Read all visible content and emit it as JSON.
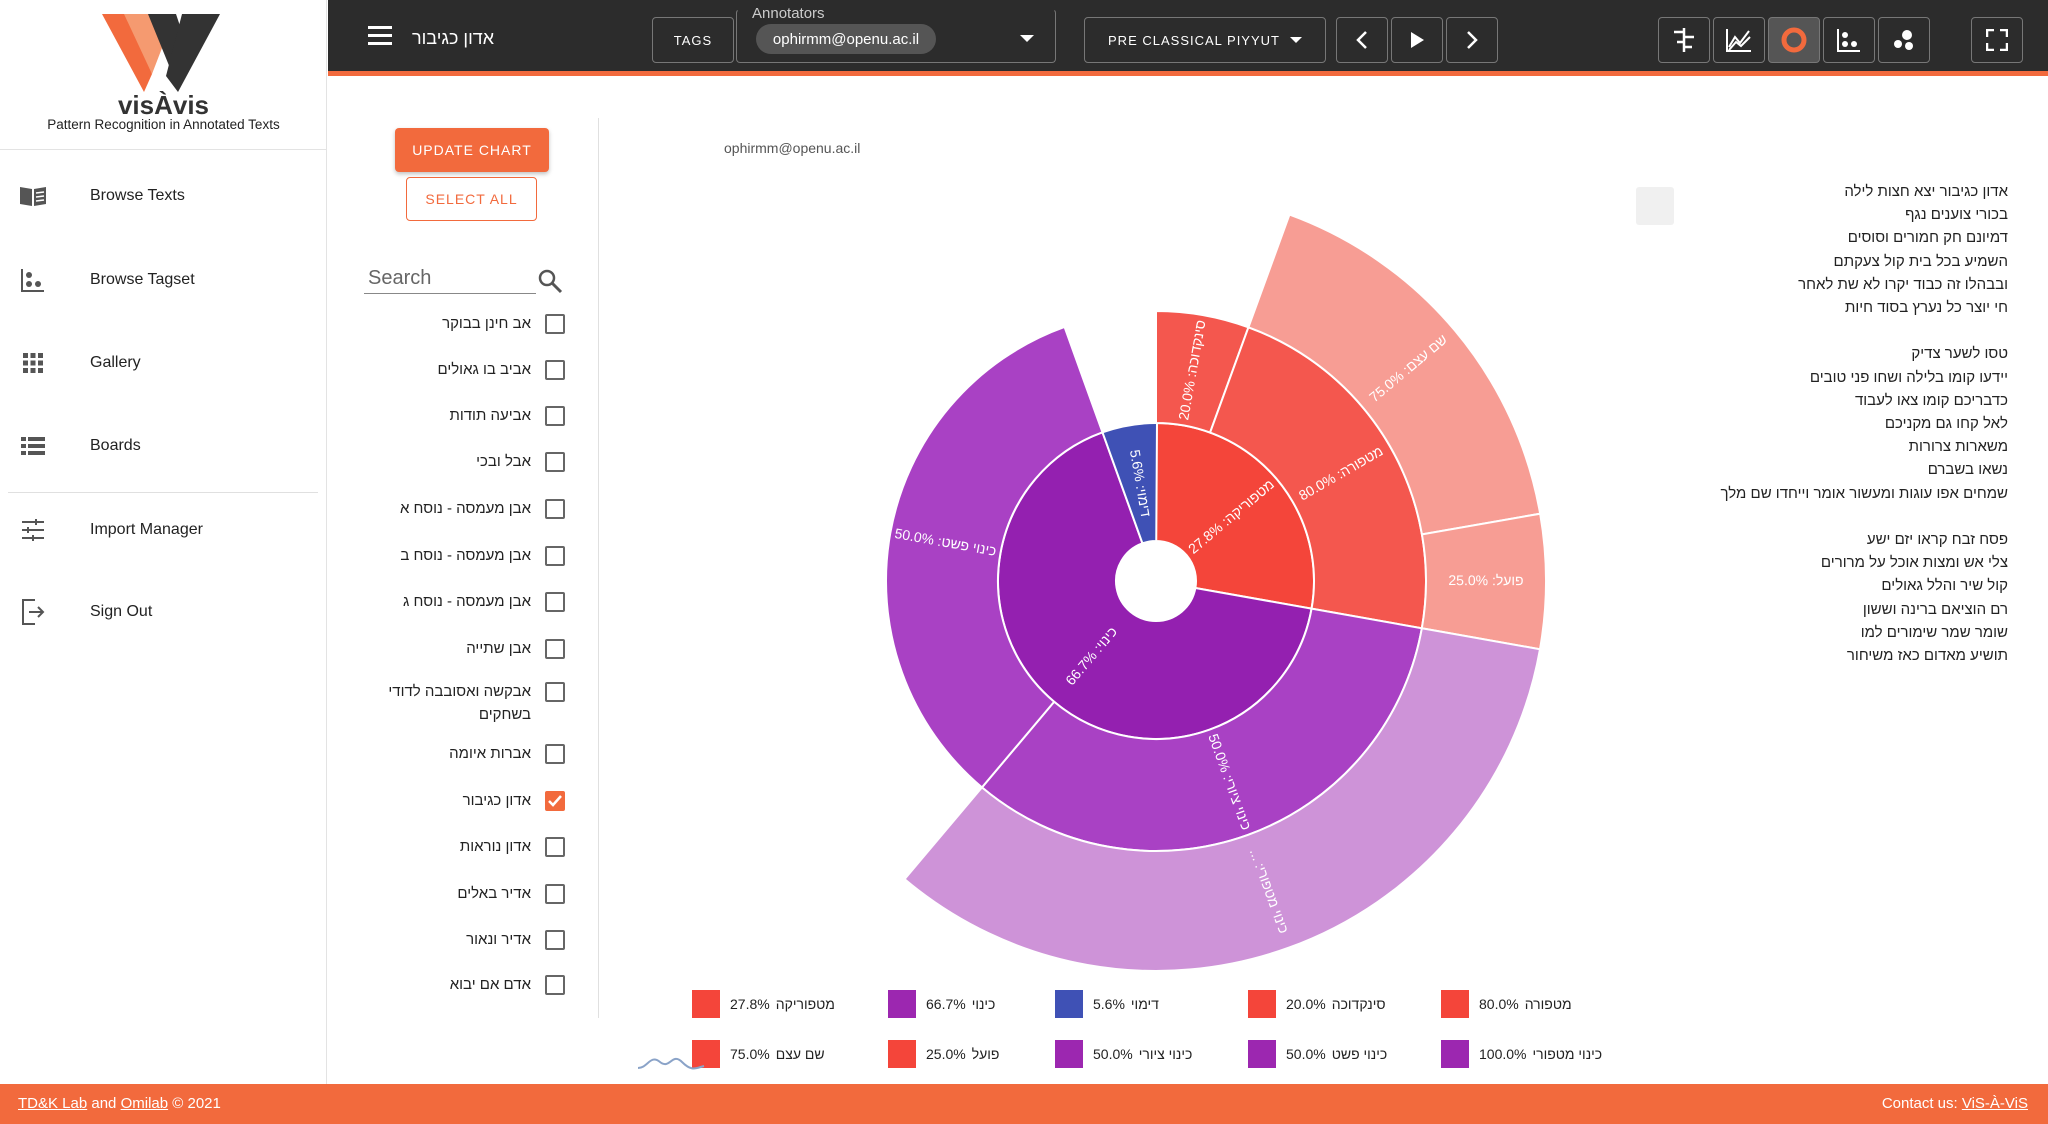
{
  "brand": {
    "name": "visÀvis",
    "tagline": "Pattern Recognition in Annotated Texts"
  },
  "nav": [
    {
      "label": "Browse Texts",
      "icon": "book-icon"
    },
    {
      "label": "Browse Tagset",
      "icon": "tagset-icon"
    },
    {
      "label": "Gallery",
      "icon": "grid-icon"
    },
    {
      "label": "Boards",
      "icon": "list-icon"
    },
    {
      "label": "Import Manager",
      "icon": "sliders-icon"
    },
    {
      "label": "Sign Out",
      "icon": "sign-out-icon"
    }
  ],
  "topbar": {
    "title": "אדון כגיבור",
    "tags_label": "TAGS",
    "annotators_label": "Annotators",
    "annotator": "ophirmm@openu.ac.il",
    "period": "PRE CLASSICAL PIYYUT"
  },
  "filters": {
    "update_label": "UPDATE CHART",
    "select_all_label": "SELECT ALL",
    "search_placeholder": "Search",
    "items": [
      {
        "label": "אב חינן בבוקר",
        "checked": false
      },
      {
        "label": "אביב בו גאולים",
        "checked": false
      },
      {
        "label": "אביעה תודות",
        "checked": false
      },
      {
        "label": "אבל ובכי",
        "checked": false
      },
      {
        "label": "אבן מעמסה - נוסח א",
        "checked": false
      },
      {
        "label": "אבן מעמסה - נוסח ב",
        "checked": false
      },
      {
        "label": "אבן מעמסה - נוסח ג",
        "checked": false
      },
      {
        "label": "אבן שתייה",
        "checked": false
      },
      {
        "label": "אבקשה ואסובבה לדודי בשחקים",
        "checked": false
      },
      {
        "label": "אברות איומה",
        "checked": false
      },
      {
        "label": "אדון כגיבור",
        "checked": true
      },
      {
        "label": "אדון נוראות",
        "checked": false
      },
      {
        "label": "אדיר באלים",
        "checked": false
      },
      {
        "label": "אדיר ונאור",
        "checked": false
      },
      {
        "label": "אדם אם יבוא",
        "checked": false
      }
    ]
  },
  "chart_user": "ophirmm@openu.ac.il",
  "chart_data": {
    "type": "sunburst",
    "rings": [
      [
        {
          "name": "מטפוריקה",
          "percent": 27.8,
          "color": "#f4453a",
          "label": "מטפוריקה: 27.8%"
        },
        {
          "name": "כינוי",
          "percent": 66.7,
          "color": "#9420b0",
          "label": "כינוי: 66.7%"
        },
        {
          "name": "דימוי",
          "percent": 5.6,
          "color": "#3f51b5",
          "label": "דימוי: 5.6%"
        }
      ],
      [
        {
          "name": "סינקדוכה",
          "percent": 20.0,
          "parent": "מטפוריקה",
          "color": "#f4574e",
          "label": "סינקדוכה: 20.0%"
        },
        {
          "name": "מטפורה",
          "percent": 80.0,
          "parent": "מטפוריקה",
          "color": "#f4574e",
          "label": "מטפורה: 80.0%"
        },
        {
          "name": "כינוי ציורי",
          "percent": 50.0,
          "parent": "כינוי",
          "color": "#a941c4",
          "label": "כינוי ציורי: 50.0%"
        },
        {
          "name": "כינוי פשט",
          "percent": 50.0,
          "parent": "כינוי",
          "color": "#a941c4",
          "label": "כינוי פשט: 50.0%"
        }
      ],
      [
        {
          "name": "שם עצם",
          "percent": 75.0,
          "parent": "מטפורה",
          "color": "#f79d94",
          "label": "שם עצם: 75.0%"
        },
        {
          "name": "פועל",
          "percent": 25.0,
          "parent": "מטפורה",
          "color": "#f79d94",
          "label": "פועל: 25.0%"
        },
        {
          "name": "כינוי מטפורי",
          "percent": 100.0,
          "parent": "כינוי ציורי",
          "color": "#ce93d8",
          "label": "כינוי מטפורי: ..."
        }
      ]
    ],
    "legend": [
      {
        "label": "מטפוריקה",
        "percent": "27.8%",
        "color": "#f4453a"
      },
      {
        "label": "כינוי",
        "percent": "66.7%",
        "color": "#9c27b0"
      },
      {
        "label": "דימוי",
        "percent": "5.6%",
        "color": "#3f51b5"
      },
      {
        "label": "סינקדוכה",
        "percent": "20.0%",
        "color": "#f4453a"
      },
      {
        "label": "מטפורה",
        "percent": "80.0%",
        "color": "#f4453a"
      },
      {
        "label": "שם עצם",
        "percent": "75.0%",
        "color": "#f4453a"
      },
      {
        "label": "פועל",
        "percent": "25.0%",
        "color": "#f4453a"
      },
      {
        "label": "כינוי ציורי",
        "percent": "50.0%",
        "color": "#9c27b0"
      },
      {
        "label": "כינוי פשט",
        "percent": "50.0%",
        "color": "#9c27b0"
      },
      {
        "label": "כינוי מטפורי",
        "percent": "100.0%",
        "color": "#9c27b0"
      }
    ]
  },
  "poem": [
    "אדון כגיבור יצא חצות לילה",
    "בכורי צוענים נגף",
    "דמיונם חק חמורים וסוסים",
    "השמיע בכל בית קול צעקתם",
    "ובבהלו זה כבוד יקרו לא שת לאחר",
    "חי יוצר כל נערץ בסוד חיות",
    "",
    "טסו לשער צדיק",
    "יידעו קומו בלילה ושחו פני טובים",
    "כדבריכם קומו צאו לעבוד",
    "לאל קחו גם מקניכם",
    "משארות צרורות",
    "נשאו בשברם",
    "שמחים אפו עוגות ומעשור אומר וייחדו שם מלך",
    "",
    "פסח זבח קראו יזם ישע",
    "צלי אש ומצות אוכל על מרורים",
    "קול שיר והלל גאולים",
    "רם הוציאם ברינה וששון",
    "שומר שמר שימורים למו",
    "תושיע מאדום כאז משיחור"
  ],
  "footer": {
    "lab1": "TD&K Lab",
    "and": " and ",
    "lab2": "Omilab",
    "copyright": " © 2021",
    "contact_prefix": "Contact us: ",
    "contact_link": "ViS-À-ViS"
  },
  "colors": {
    "accent": "#f26a3d",
    "topbar": "#2c2c2c"
  }
}
